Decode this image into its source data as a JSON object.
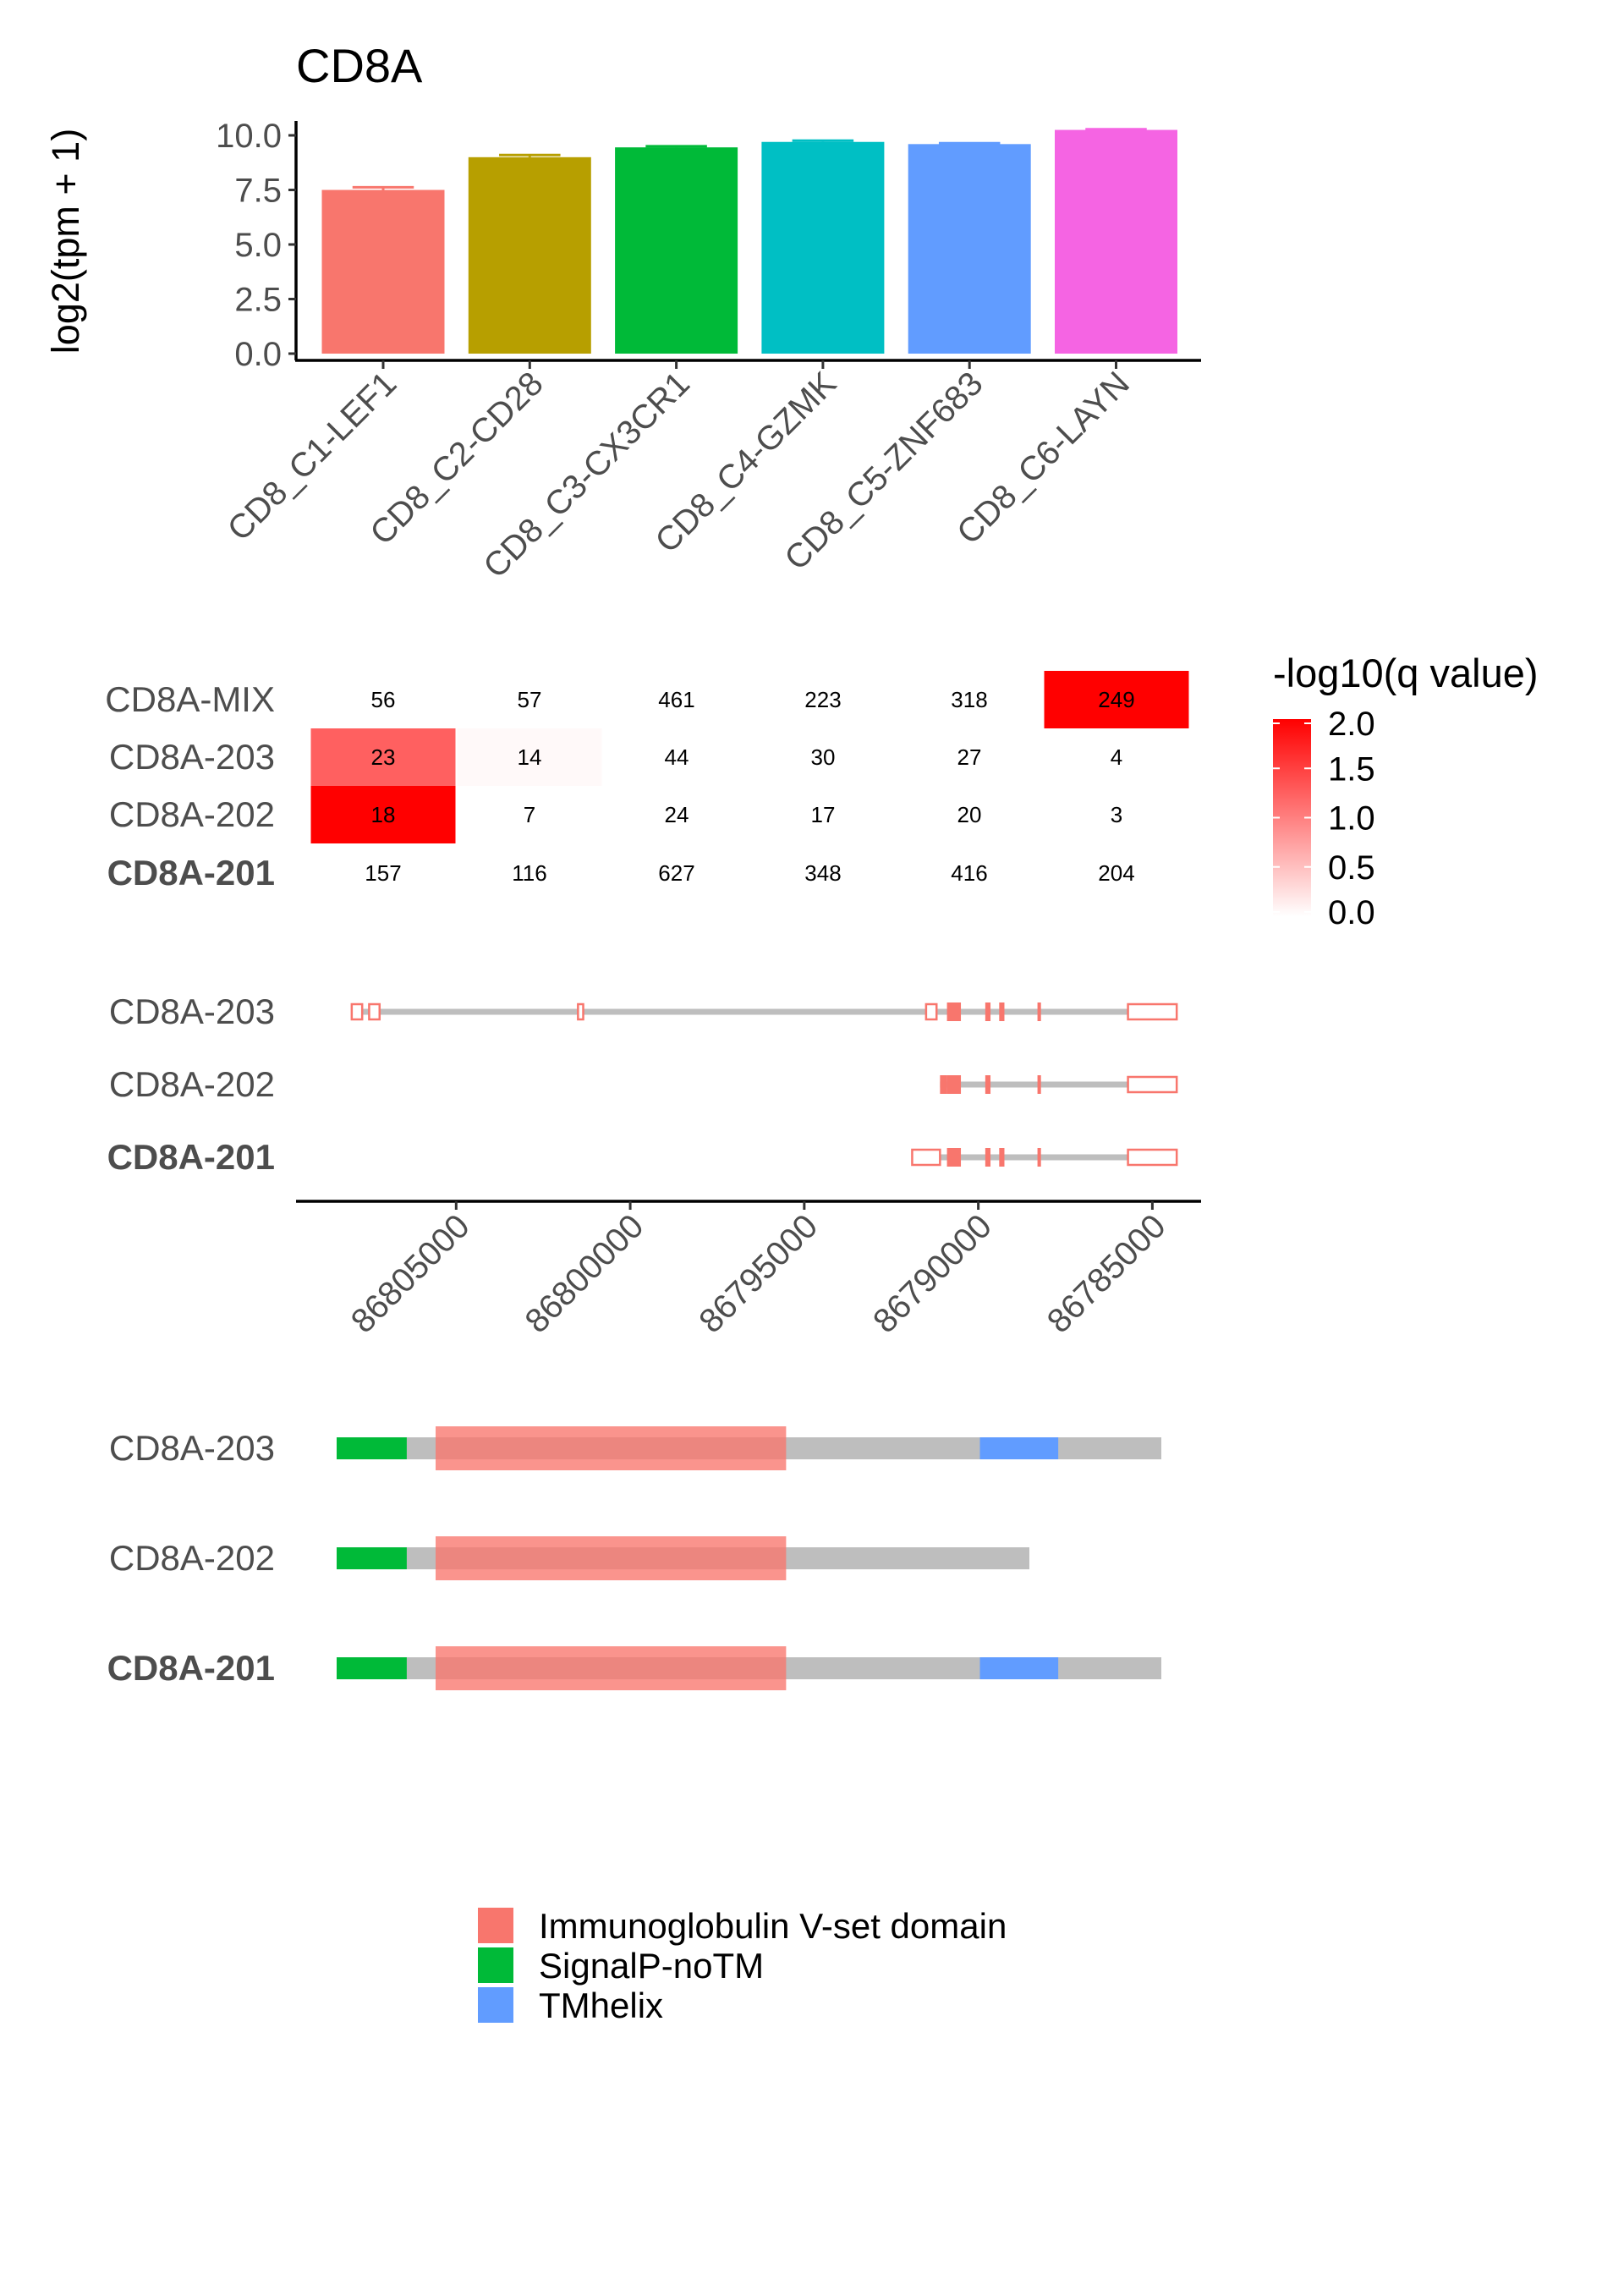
{
  "chart_data": [
    {
      "type": "bar",
      "title": "CD8A",
      "ylabel": "log2(tpm + 1)",
      "xlabel": "",
      "ylim": [
        0,
        10.5
      ],
      "yticks": [
        "0.0",
        "2.5",
        "5.0",
        "7.5",
        "10.0"
      ],
      "categories": [
        "CD8_C1-LEF1",
        "CD8_C2-CD28",
        "CD8_C3-CX3CR1",
        "CD8_C4-GZMK",
        "CD8_C5-ZNF683",
        "CD8_C6-LAYN"
      ],
      "values": [
        7.5,
        9.0,
        9.45,
        9.7,
        9.6,
        10.25
      ],
      "errors": [
        0.12,
        0.1,
        0.05,
        0.06,
        0.04,
        0.03
      ],
      "colors": [
        "#F8766D",
        "#B79F00",
        "#00BA38",
        "#00BFC4",
        "#619CFF",
        "#F564E3"
      ]
    },
    {
      "type": "heatmap",
      "rows": [
        "CD8A-MIX",
        "CD8A-203",
        "CD8A-202",
        "CD8A-201"
      ],
      "bold_rows": [
        "CD8A-201"
      ],
      "columns": [
        "CD8_C1-LEF1",
        "CD8_C2-CD28",
        "CD8_C3-CX3CR1",
        "CD8_C4-GZMK",
        "CD8_C5-ZNF683",
        "CD8_C6-LAYN"
      ],
      "labels": [
        [
          "56",
          "57",
          "461",
          "223",
          "318",
          "249"
        ],
        [
          "23",
          "14",
          "44",
          "30",
          "27",
          "4"
        ],
        [
          "18",
          "7",
          "24",
          "17",
          "20",
          "3"
        ],
        [
          "157",
          "116",
          "627",
          "348",
          "416",
          "204"
        ]
      ],
      "values": [
        [
          null,
          null,
          null,
          null,
          null,
          2.0
        ],
        [
          1.25,
          0.05,
          null,
          null,
          null,
          null
        ],
        [
          2.0,
          null,
          null,
          null,
          null,
          null
        ],
        [
          null,
          null,
          null,
          null,
          null,
          null
        ]
      ],
      "legend_title": "-log10(q value)",
      "legend_ticks": [
        "0.0",
        "0.5",
        "1.0",
        "1.5",
        "2.0"
      ],
      "color_range": [
        0,
        2
      ],
      "color_low": "#FFFFFF",
      "color_high": "#FF0000"
    },
    {
      "type": "gene-structure",
      "transcripts": [
        "CD8A-203",
        "CD8A-202",
        "CD8A-201"
      ],
      "bold": [
        "CD8A-201"
      ],
      "x_ticks": [
        "86805000",
        "86800000",
        "86795000",
        "86790000",
        "86785000"
      ],
      "x_tick_values": [
        86805000,
        86800000,
        86795000,
        86790000,
        86785000
      ],
      "xlim": [
        86809600,
        86783600
      ],
      "line_color": "#BEBEBE",
      "exon_color": "#F8766D",
      "models": [
        {
          "span": [
            86808000,
            86784300
          ],
          "utr": [
            [
              86808000,
              86807700
            ],
            [
              86807500,
              86807200
            ],
            [
              86801500,
              86801350
            ],
            [
              86791500,
              86791200
            ],
            [
              86785700,
              86784300
            ]
          ],
          "cds": [
            [
              86790900,
              86790500
            ],
            [
              86789800,
              86789650
            ],
            [
              86789400,
              86789250
            ],
            [
              86788300,
              86788200
            ]
          ]
        },
        {
          "span": [
            86791100,
            86784300
          ],
          "utr": [
            [
              86785700,
              86784300
            ]
          ],
          "cds": [
            [
              86791100,
              86790900
            ],
            [
              86790900,
              86790500
            ],
            [
              86789800,
              86789650
            ],
            [
              86788300,
              86788200
            ]
          ]
        },
        {
          "span": [
            86791900,
            86784300
          ],
          "utr": [
            [
              86791900,
              86791100
            ],
            [
              86785700,
              86784300
            ]
          ],
          "cds": [
            [
              86790900,
              86790500
            ],
            [
              86789800,
              86789650
            ],
            [
              86789400,
              86789250
            ],
            [
              86788300,
              86788200
            ]
          ]
        }
      ]
    },
    {
      "type": "protein-domains",
      "transcripts": [
        "CD8A-203",
        "CD8A-202",
        "CD8A-201"
      ],
      "bold": [
        "CD8A-201"
      ],
      "backbone_color": "#BEBEBE",
      "models": [
        {
          "length": 1.0,
          "domains": [
            {
              "name": "SignalP-noTM",
              "start": 0.0,
              "end": 0.085
            },
            {
              "name": "Immunoglobulin V-set domain",
              "start": 0.12,
              "end": 0.545
            },
            {
              "name": "TMhelix",
              "start": 0.78,
              "end": 0.875
            }
          ]
        },
        {
          "length": 0.84,
          "domains": [
            {
              "name": "SignalP-noTM",
              "start": 0.0,
              "end": 0.085
            },
            {
              "name": "Immunoglobulin V-set domain",
              "start": 0.12,
              "end": 0.545
            }
          ]
        },
        {
          "length": 1.0,
          "domains": [
            {
              "name": "SignalP-noTM",
              "start": 0.0,
              "end": 0.085
            },
            {
              "name": "Immunoglobulin V-set domain",
              "start": 0.12,
              "end": 0.545
            },
            {
              "name": "TMhelix",
              "start": 0.78,
              "end": 0.875
            }
          ]
        }
      ],
      "legend": [
        {
          "name": "Immunoglobulin V-set domain",
          "color": "#F8766D"
        },
        {
          "name": "SignalP-noTM",
          "color": "#00BA38"
        },
        {
          "name": "TMhelix",
          "color": "#619CFF"
        }
      ]
    }
  ]
}
